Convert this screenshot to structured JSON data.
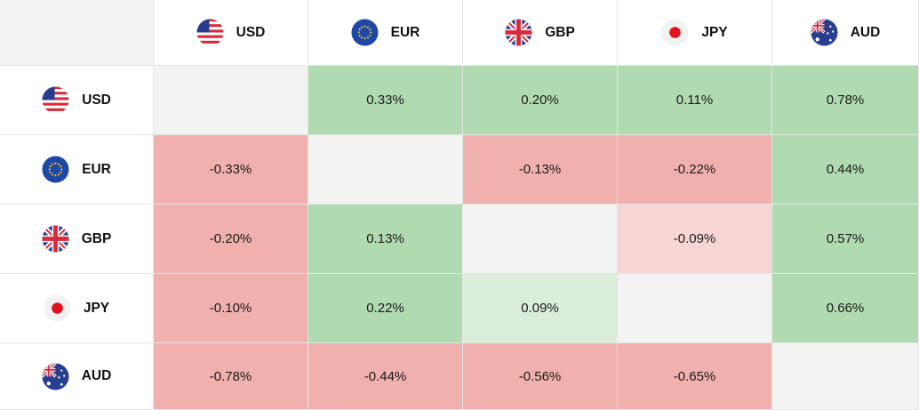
{
  "currencies": [
    "USD",
    "EUR",
    "GBP",
    "JPY",
    "AUD"
  ],
  "flags": {
    "USD": "us-flag-icon",
    "EUR": "eu-flag-icon",
    "GBP": "uk-flag-icon",
    "JPY": "japan-flag-icon",
    "AUD": "australia-flag-icon"
  },
  "colors": {
    "positive": "#b0dab0",
    "positive_light": "#d9edd8",
    "negative": "#f0b0ae",
    "negative_light": "#f7d5d5",
    "diagonal": "#f3f3f3"
  },
  "heatmap": {
    "rows": [
      {
        "currency": "USD",
        "cells": [
          "",
          "0.33%",
          "0.20%",
          "0.11%",
          "0.78%"
        ]
      },
      {
        "currency": "EUR",
        "cells": [
          "-0.33%",
          "",
          "-0.13%",
          "-0.22%",
          "0.44%"
        ]
      },
      {
        "currency": "GBP",
        "cells": [
          "-0.20%",
          "0.13%",
          "",
          "-0.09%",
          "0.57%"
        ]
      },
      {
        "currency": "JPY",
        "cells": [
          "-0.10%",
          "0.22%",
          "0.09%",
          "",
          "0.66%"
        ]
      },
      {
        "currency": "AUD",
        "cells": [
          "-0.78%",
          "-0.44%",
          "-0.56%",
          "-0.65%",
          ""
        ]
      }
    ]
  }
}
